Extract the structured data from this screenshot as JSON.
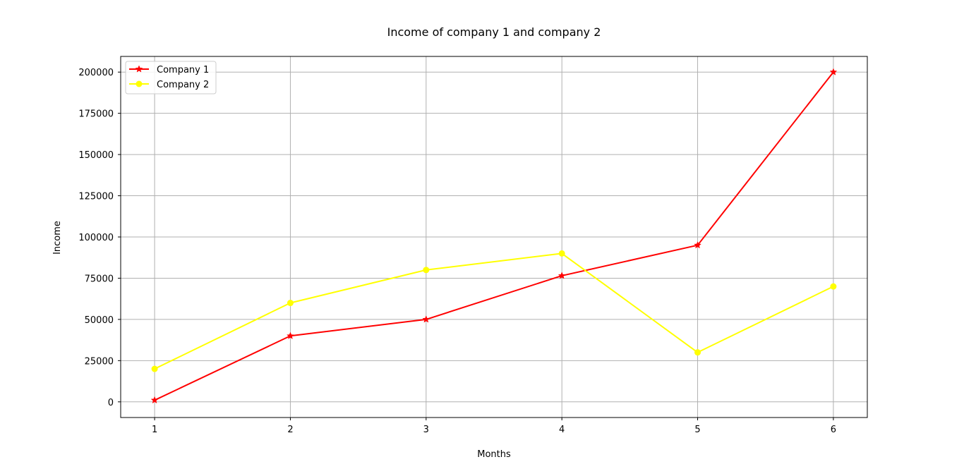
{
  "chart_data": {
    "type": "line",
    "title": "Income of company 1 and company 2",
    "xlabel": "Months",
    "ylabel": "Income",
    "x": [
      1,
      2,
      3,
      4,
      5,
      6
    ],
    "xlim": [
      0.75,
      6.25
    ],
    "ylim": [
      -9500,
      209500
    ],
    "xticks": [
      "1",
      "2",
      "3",
      "4",
      "5",
      "6"
    ],
    "yticks": [
      0,
      25000,
      50000,
      75000,
      100000,
      125000,
      150000,
      175000,
      200000
    ],
    "ytick_labels": [
      "0",
      "25000",
      "50000",
      "75000",
      "100000",
      "125000",
      "150000",
      "175000",
      "200000"
    ],
    "grid": true,
    "legend_position": "top-left",
    "series": [
      {
        "name": "Company 1",
        "values": [
          1000,
          40000,
          50000,
          76500,
          95000,
          200000
        ],
        "color": "#ff0000",
        "marker": "star"
      },
      {
        "name": "Company 2",
        "values": [
          20000,
          60000,
          80000,
          90000,
          30000,
          70000
        ],
        "color": "#ffff00",
        "marker": "circle"
      }
    ]
  }
}
